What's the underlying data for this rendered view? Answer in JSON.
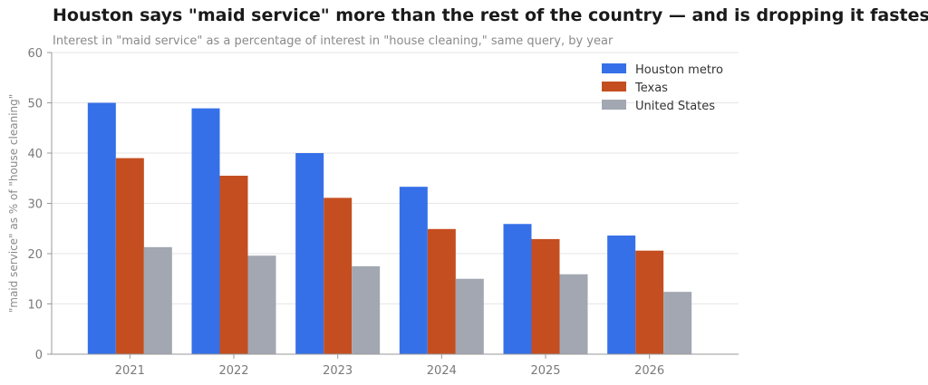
{
  "chart_data": {
    "type": "bar",
    "title": "Houston says \"maid service\" more than the rest of the country — and is dropping it fastest",
    "subtitle": "Interest in \"maid service\" as a percentage of interest in \"house cleaning,\" same query, by year",
    "xlabel": "",
    "ylabel": "\"maid service\" as % of \"house cleaning\"",
    "ylim": [
      0,
      60
    ],
    "yticks": [
      "0",
      "10",
      "20",
      "30",
      "40",
      "50",
      "60"
    ],
    "grid": true,
    "legend_position": "top-right",
    "categories": [
      "2021",
      "2022",
      "2023",
      "2024",
      "2025",
      "2026"
    ],
    "series": [
      {
        "name": "Houston metro",
        "color": "#3570e8",
        "values": [
          50.0,
          48.9,
          40.0,
          33.3,
          25.9,
          23.6
        ]
      },
      {
        "name": "Texas",
        "color": "#c44e20",
        "values": [
          39.0,
          35.5,
          31.1,
          24.9,
          22.9,
          20.6
        ]
      },
      {
        "name": "United States",
        "color": "#a2a7b2",
        "values": [
          21.3,
          19.6,
          17.5,
          15.0,
          15.9,
          12.4
        ]
      }
    ]
  }
}
